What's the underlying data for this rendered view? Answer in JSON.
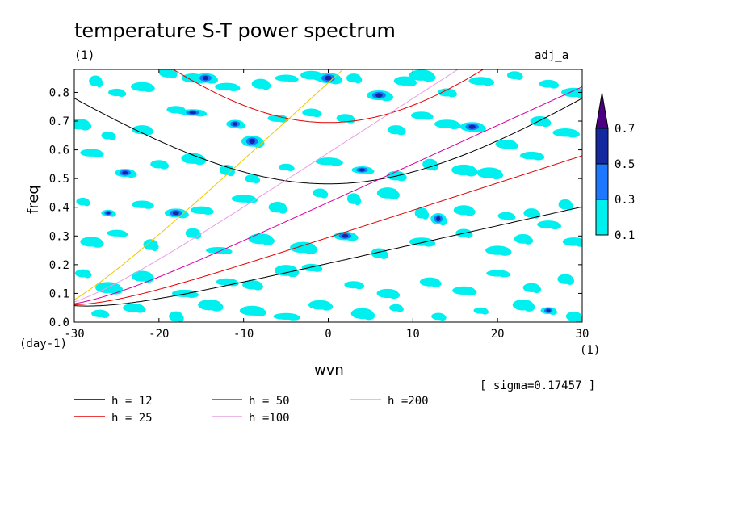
{
  "chart_data": {
    "type": "contour",
    "title": "temperature S-T power spectrum",
    "subtitle_left": "(1)",
    "subtitle_right": "adj_a",
    "xlabel": "wvn",
    "ylabel": "freq",
    "x_unit": "(1)",
    "y_unit": "(day-1)",
    "xlim": [
      -30,
      30
    ],
    "ylim": [
      0,
      0.88
    ],
    "x_ticks": [
      -30,
      -20,
      -10,
      0,
      10,
      20,
      30
    ],
    "x_tick_labels": [
      "-30",
      "-20",
      "-10",
      "0",
      "10",
      "20",
      "30"
    ],
    "y_ticks": [
      0,
      0.1,
      0.2,
      0.3,
      0.4,
      0.5,
      0.6,
      0.7,
      0.8
    ],
    "y_tick_labels": [
      "0.0",
      "0.1",
      "0.2",
      "0.3",
      "0.4",
      "0.5",
      "0.6",
      "0.7",
      "0.8"
    ],
    "sigma_note": "[ sigma=0.17457 ]",
    "colorbar": {
      "levels": [
        0.1,
        0.3,
        0.5,
        0.7
      ],
      "labels": [
        "0.1",
        "0.3",
        "0.5",
        "0.7"
      ],
      "colors": [
        "#00f0f0",
        "#1e78ff",
        "#1428a0",
        "#4b0082"
      ]
    },
    "curves": [
      {
        "label": "h = 12",
        "h": 12,
        "color": "#000000"
      },
      {
        "label": "h = 25",
        "h": 25,
        "color": "#e60000"
      },
      {
        "label": "h = 50",
        "h": 50,
        "color": "#d200a0"
      },
      {
        "label": "h =100",
        "h": 100,
        "color": "#e6a0e6"
      },
      {
        "label": "h =200",
        "h": 200,
        "color": "#f0c800"
      }
    ],
    "spots": [
      [
        -27.5,
        0.84,
        1
      ],
      [
        -25,
        0.8,
        1
      ],
      [
        -22,
        0.82,
        1
      ],
      [
        -19,
        0.87,
        1
      ],
      [
        -16,
        0.85,
        1
      ],
      [
        -14.5,
        0.85,
        2
      ],
      [
        -12,
        0.82,
        1
      ],
      [
        -8,
        0.83,
        1
      ],
      [
        -5,
        0.85,
        1
      ],
      [
        -2,
        0.86,
        1
      ],
      [
        0,
        0.85,
        2
      ],
      [
        3,
        0.85,
        1
      ],
      [
        6,
        0.79,
        2
      ],
      [
        9,
        0.84,
        1
      ],
      [
        11,
        0.86,
        1
      ],
      [
        14,
        0.8,
        1
      ],
      [
        18,
        0.84,
        1
      ],
      [
        22,
        0.86,
        1
      ],
      [
        26,
        0.83,
        1
      ],
      [
        29,
        0.8,
        1
      ],
      [
        -29.5,
        0.69,
        1
      ],
      [
        -26,
        0.65,
        1
      ],
      [
        -22,
        0.67,
        1
      ],
      [
        -18,
        0.74,
        1
      ],
      [
        -16,
        0.73,
        2
      ],
      [
        -11,
        0.69,
        2
      ],
      [
        -9,
        0.63,
        2
      ],
      [
        -6,
        0.71,
        1
      ],
      [
        -2,
        0.73,
        1
      ],
      [
        2,
        0.71,
        1
      ],
      [
        8,
        0.67,
        1
      ],
      [
        11,
        0.72,
        1
      ],
      [
        14,
        0.69,
        1
      ],
      [
        17,
        0.68,
        2
      ],
      [
        21,
        0.62,
        1
      ],
      [
        25,
        0.7,
        1
      ],
      [
        28,
        0.66,
        1
      ],
      [
        -28,
        0.59,
        1
      ],
      [
        -24,
        0.52,
        2
      ],
      [
        -20,
        0.55,
        1
      ],
      [
        -16,
        0.57,
        1
      ],
      [
        -12,
        0.53,
        1
      ],
      [
        -9,
        0.5,
        1
      ],
      [
        -5,
        0.54,
        1
      ],
      [
        0,
        0.56,
        1
      ],
      [
        4,
        0.53,
        2
      ],
      [
        8,
        0.51,
        1
      ],
      [
        12,
        0.55,
        1
      ],
      [
        16,
        0.53,
        1
      ],
      [
        19,
        0.52,
        1
      ],
      [
        24,
        0.58,
        1
      ],
      [
        -29,
        0.42,
        1
      ],
      [
        -26,
        0.38,
        2
      ],
      [
        -22,
        0.41,
        1
      ],
      [
        -18,
        0.38,
        2
      ],
      [
        -15,
        0.39,
        1
      ],
      [
        -10,
        0.43,
        1
      ],
      [
        -6,
        0.4,
        1
      ],
      [
        -1,
        0.45,
        1
      ],
      [
        3,
        0.43,
        1
      ],
      [
        7,
        0.45,
        1
      ],
      [
        11,
        0.38,
        1
      ],
      [
        13,
        0.36,
        2
      ],
      [
        16,
        0.39,
        1
      ],
      [
        21,
        0.37,
        1
      ],
      [
        24,
        0.38,
        1
      ],
      [
        28,
        0.41,
        1
      ],
      [
        -28,
        0.28,
        1
      ],
      [
        -25,
        0.31,
        1
      ],
      [
        -21,
        0.27,
        1
      ],
      [
        -16,
        0.31,
        1
      ],
      [
        -13,
        0.25,
        1
      ],
      [
        -8,
        0.29,
        1
      ],
      [
        -3,
        0.26,
        1
      ],
      [
        2,
        0.3,
        2
      ],
      [
        6,
        0.24,
        1
      ],
      [
        11,
        0.28,
        1
      ],
      [
        16,
        0.31,
        1
      ],
      [
        20,
        0.25,
        1
      ],
      [
        23,
        0.29,
        1
      ],
      [
        26,
        0.34,
        1
      ],
      [
        29,
        0.28,
        1
      ],
      [
        -29,
        0.17,
        1
      ],
      [
        -26,
        0.12,
        1
      ],
      [
        -22,
        0.16,
        1
      ],
      [
        -17,
        0.1,
        1
      ],
      [
        -12,
        0.14,
        1
      ],
      [
        -9,
        0.13,
        1
      ],
      [
        -5,
        0.18,
        1
      ],
      [
        -2,
        0.19,
        1
      ],
      [
        3,
        0.13,
        1
      ],
      [
        7,
        0.1,
        1
      ],
      [
        12,
        0.14,
        1
      ],
      [
        16,
        0.11,
        1
      ],
      [
        20,
        0.17,
        1
      ],
      [
        24,
        0.12,
        1
      ],
      [
        28,
        0.15,
        1
      ],
      [
        -27,
        0.03,
        1
      ],
      [
        -23,
        0.05,
        1
      ],
      [
        -18,
        0.02,
        1
      ],
      [
        -14,
        0.06,
        1
      ],
      [
        -9,
        0.04,
        1
      ],
      [
        -5,
        0.02,
        1
      ],
      [
        -1,
        0.06,
        1
      ],
      [
        4,
        0.03,
        1
      ],
      [
        8,
        0.05,
        1
      ],
      [
        13,
        0.02,
        1
      ],
      [
        18,
        0.04,
        1
      ],
      [
        23,
        0.06,
        1
      ],
      [
        26,
        0.04,
        2
      ],
      [
        29,
        0.02,
        1
      ]
    ]
  }
}
